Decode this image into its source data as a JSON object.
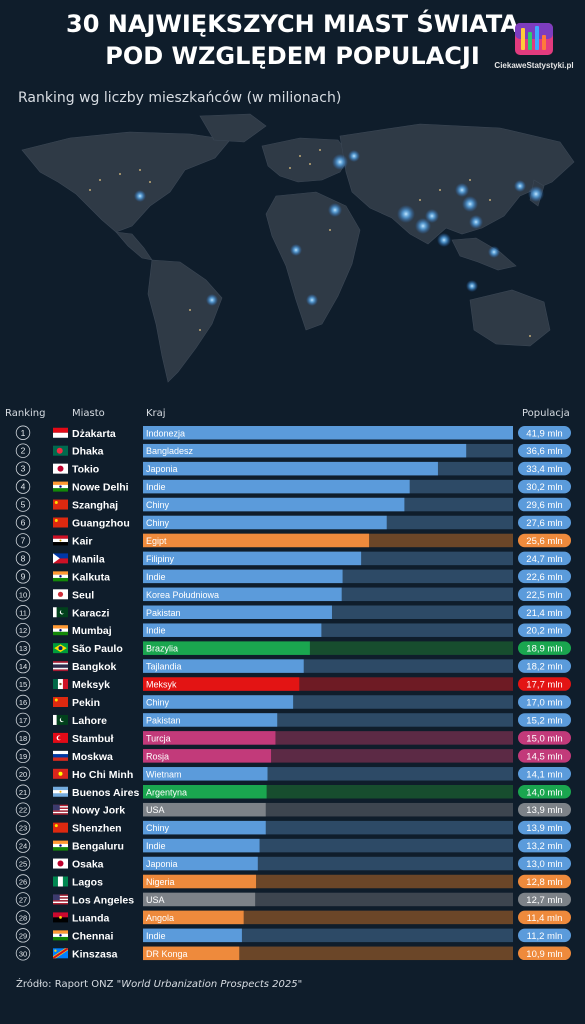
{
  "title_line1": "30 NAJWIĘKSZYCH MIAST ŚWIATA",
  "title_line2": "POD WZGLĘDEM POPULACJI",
  "logo_text": "CiekaweStatystyki.pl",
  "subtitle": "Ranking wg liczby mieszkańców (w milionach)",
  "source_prefix": "Źródło: Raport ONZ ",
  "source_title": "\"World Urbanization Prospects 2025\"",
  "colors": {
    "blue_bar": "#5b9bdb",
    "blue_track": "#2d4a66",
    "orange_bar": "#ee8a3c",
    "orange_track": "#6b4628",
    "green_bar": "#1aa64f",
    "green_track": "#174d2e",
    "red_bar": "#e31414",
    "red_track": "#6e1b24",
    "pink_bar": "#c23a7a",
    "pink_track": "#5c2a45",
    "gray_bar": "#7d8288",
    "gray_track": "#3d454f"
  },
  "chart_data": {
    "type": "bar",
    "orientation": "horizontal",
    "column_headers": {
      "rank": "Ranking",
      "city": "Miasto",
      "country": "Kraj",
      "value": "Populacja"
    },
    "unit": "mln",
    "xlim": [
      0,
      41.9
    ],
    "rows": [
      {
        "rank": "1",
        "city": "Dżakarta",
        "country": "Indonezja",
        "value": 41.9,
        "label": "41,9 mln",
        "group": "blue",
        "flag": "indonesia"
      },
      {
        "rank": "2",
        "city": "Dhaka",
        "country": "Bangladesz",
        "value": 36.6,
        "label": "36,6 mln",
        "group": "blue",
        "flag": "bangladesh"
      },
      {
        "rank": "3",
        "city": "Tokio",
        "country": "Japonia",
        "value": 33.4,
        "label": "33,4 mln",
        "group": "blue",
        "flag": "japan"
      },
      {
        "rank": "4",
        "city": "Nowe Delhi",
        "country": "Indie",
        "value": 30.2,
        "label": "30,2 mln",
        "group": "blue",
        "flag": "india"
      },
      {
        "rank": "5",
        "city": "Szanghaj",
        "country": "Chiny",
        "value": 29.6,
        "label": "29,6 mln",
        "group": "blue",
        "flag": "china"
      },
      {
        "rank": "6",
        "city": "Guangzhou",
        "country": "Chiny",
        "value": 27.6,
        "label": "27,6 mln",
        "group": "blue",
        "flag": "china"
      },
      {
        "rank": "7",
        "city": "Kair",
        "country": "Egipt",
        "value": 25.6,
        "label": "25,6 mln",
        "group": "orange",
        "flag": "egypt"
      },
      {
        "rank": "8",
        "city": "Manila",
        "country": "Filipiny",
        "value": 24.7,
        "label": "24,7 mln",
        "group": "blue",
        "flag": "philippines"
      },
      {
        "rank": "9",
        "city": "Kalkuta",
        "country": "Indie",
        "value": 22.6,
        "label": "22,6 mln",
        "group": "blue",
        "flag": "india"
      },
      {
        "rank": "10",
        "city": "Seul",
        "country": "Korea Południowa",
        "value": 22.5,
        "label": "22,5 mln",
        "group": "blue",
        "flag": "korea"
      },
      {
        "rank": "11",
        "city": "Karaczi",
        "country": "Pakistan",
        "value": 21.4,
        "label": "21,4 mln",
        "group": "blue",
        "flag": "pakistan"
      },
      {
        "rank": "12",
        "city": "Mumbaj",
        "country": "Indie",
        "value": 20.2,
        "label": "20,2 mln",
        "group": "blue",
        "flag": "india"
      },
      {
        "rank": "13",
        "city": "São Paulo",
        "country": "Brazylia",
        "value": 18.9,
        "label": "18,9 mln",
        "group": "green",
        "flag": "brazil"
      },
      {
        "rank": "14",
        "city": "Bangkok",
        "country": "Tajlandia",
        "value": 18.2,
        "label": "18,2 mln",
        "group": "blue",
        "flag": "thailand"
      },
      {
        "rank": "15",
        "city": "Meksyk",
        "country": "Meksyk",
        "value": 17.7,
        "label": "17,7 mln",
        "group": "red",
        "flag": "mexico"
      },
      {
        "rank": "16",
        "city": "Pekin",
        "country": "Chiny",
        "value": 17.0,
        "label": "17,0 mln",
        "group": "blue",
        "flag": "china"
      },
      {
        "rank": "17",
        "city": "Lahore",
        "country": "Pakistan",
        "value": 15.2,
        "label": "15,2 mln",
        "group": "blue",
        "flag": "pakistan"
      },
      {
        "rank": "18",
        "city": "Stambuł",
        "country": "Turcja",
        "value": 15.0,
        "label": "15,0 mln",
        "group": "pink",
        "flag": "turkey"
      },
      {
        "rank": "19",
        "city": "Moskwa",
        "country": "Rosja",
        "value": 14.5,
        "label": "14,5 mln",
        "group": "pink",
        "flag": "russia"
      },
      {
        "rank": "20",
        "city": "Ho Chi Minh",
        "country": "Wietnam",
        "value": 14.1,
        "label": "14,1 mln",
        "group": "blue",
        "flag": "vietnam"
      },
      {
        "rank": "21",
        "city": "Buenos Aires",
        "country": "Argentyna",
        "value": 14.0,
        "label": "14,0 mln",
        "group": "green",
        "flag": "argentina"
      },
      {
        "rank": "22",
        "city": "Nowy Jork",
        "country": "USA",
        "value": 13.9,
        "label": "13,9 mln",
        "group": "gray",
        "flag": "usa"
      },
      {
        "rank": "23",
        "city": "Shenzhen",
        "country": "Chiny",
        "value": 13.9,
        "label": "13,9 mln",
        "group": "blue",
        "flag": "china"
      },
      {
        "rank": "24",
        "city": "Bengaluru",
        "country": "Indie",
        "value": 13.2,
        "label": "13,2 mln",
        "group": "blue",
        "flag": "india"
      },
      {
        "rank": "25",
        "city": "Osaka",
        "country": "Japonia",
        "value": 13.0,
        "label": "13,0 mln",
        "group": "blue",
        "flag": "japan"
      },
      {
        "rank": "26",
        "city": "Lagos",
        "country": "Nigeria",
        "value": 12.8,
        "label": "12,8 mln",
        "group": "orange",
        "flag": "nigeria"
      },
      {
        "rank": "27",
        "city": "Los Angeles",
        "country": "USA",
        "value": 12.7,
        "label": "12,7 mln",
        "group": "gray",
        "flag": "usa"
      },
      {
        "rank": "28",
        "city": "Luanda",
        "country": "Angola",
        "value": 11.4,
        "label": "11,4 mln",
        "group": "orange",
        "flag": "angola"
      },
      {
        "rank": "29",
        "city": "Chennai",
        "country": "Indie",
        "value": 11.2,
        "label": "11,2 mln",
        "group": "blue",
        "flag": "india"
      },
      {
        "rank": "30",
        "city": "Kinszasa",
        "country": "DR Konga",
        "value": 10.9,
        "label": "10,9 mln",
        "group": "orange",
        "flag": "drc"
      }
    ]
  }
}
